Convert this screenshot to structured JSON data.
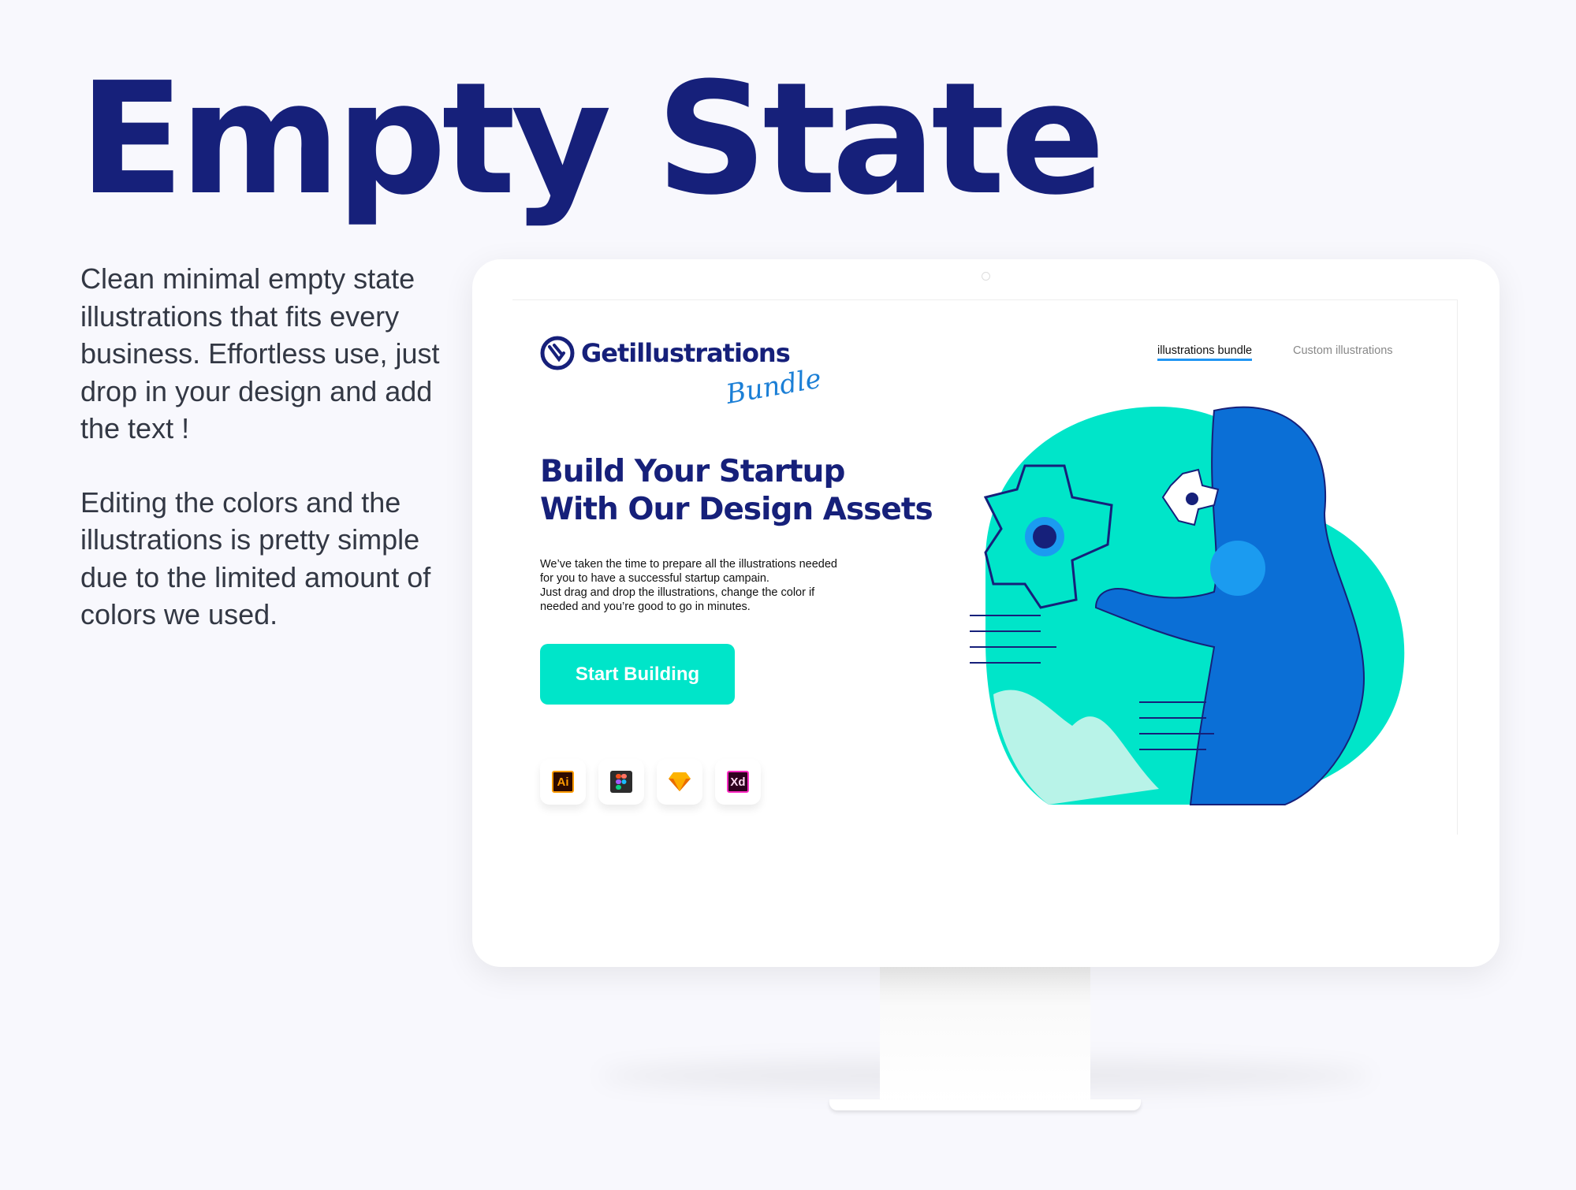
{
  "title": "Empty State",
  "description": [
    "Clean minimal empty state illustrations that fits every business. Effortless use, just drop in your design and add the text !",
    "Editing the colors and the illustrations is pretty simple due to the limited amount of colors we used."
  ],
  "screen": {
    "logo": {
      "name": "Getillustrations",
      "tagline": "Bundle"
    },
    "nav": [
      {
        "label": "illustrations bundle",
        "active": true
      },
      {
        "label": "Custom illustrations",
        "active": false
      }
    ],
    "headline": [
      "Build Your Startup",
      "With Our Design Assets"
    ],
    "body": [
      "We’ve taken the time to prepare all the illustrations needed",
      "for you to have a successful startup campain.",
      "Just drag and drop the illustrations, change the color if",
      "needed and you’re good to go in minutes."
    ],
    "cta_label": "Start Building",
    "tools": [
      {
        "icon": "illustrator-icon",
        "label": "Ai"
      },
      {
        "icon": "figma-icon",
        "label": ""
      },
      {
        "icon": "sketch-icon",
        "label": ""
      },
      {
        "icon": "xd-icon",
        "label": "Xd"
      }
    ]
  },
  "colors": {
    "navy": "#16207a",
    "accent": "#00e5c9",
    "blue": "#1b7fd6",
    "background": "#f8f8fd"
  }
}
